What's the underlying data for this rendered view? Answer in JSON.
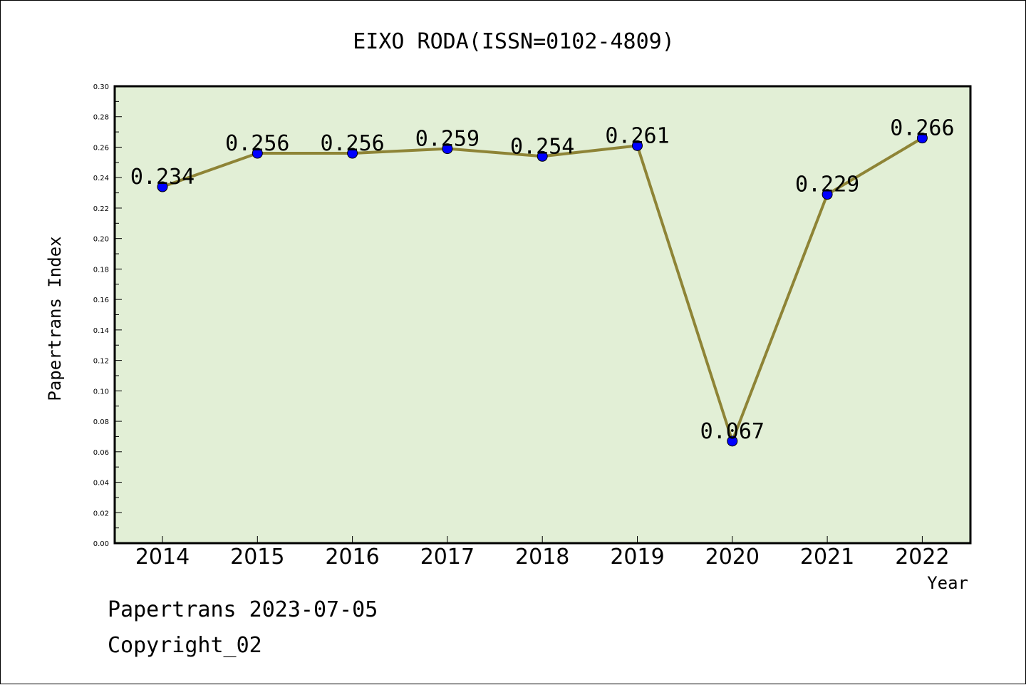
{
  "chart_data": {
    "type": "line",
    "title": "EIXO RODA(ISSN=0102-4809)",
    "xlabel": "Year",
    "ylabel": "Papertrans Index",
    "categories": [
      "2014",
      "2015",
      "2016",
      "2017",
      "2018",
      "2019",
      "2020",
      "2021",
      "2022"
    ],
    "series": [
      {
        "values": [
          0.234,
          0.256,
          0.256,
          0.259,
          0.254,
          0.261,
          0.067,
          0.229,
          0.266
        ],
        "labels": [
          "0.234",
          "0.256",
          "0.256",
          "0.259",
          "0.254",
          "0.261",
          "0.067",
          "0.229",
          "0.266"
        ]
      }
    ],
    "ylim": [
      0,
      0.3
    ],
    "yticks": [
      "0.00",
      "0.02",
      "0.04",
      "0.06",
      "0.08",
      "0.10",
      "0.12",
      "0.14",
      "0.16",
      "0.18",
      "0.20",
      "0.22",
      "0.24",
      "0.26",
      "0.28",
      "0.30"
    ],
    "grid": false,
    "colors": {
      "plot_background": "#e2efd6",
      "line": "#8e8436",
      "marker": "#0000ff"
    }
  },
  "footer": {
    "line1": "Papertrans 2023-07-05",
    "line2": "Copyright_02"
  }
}
